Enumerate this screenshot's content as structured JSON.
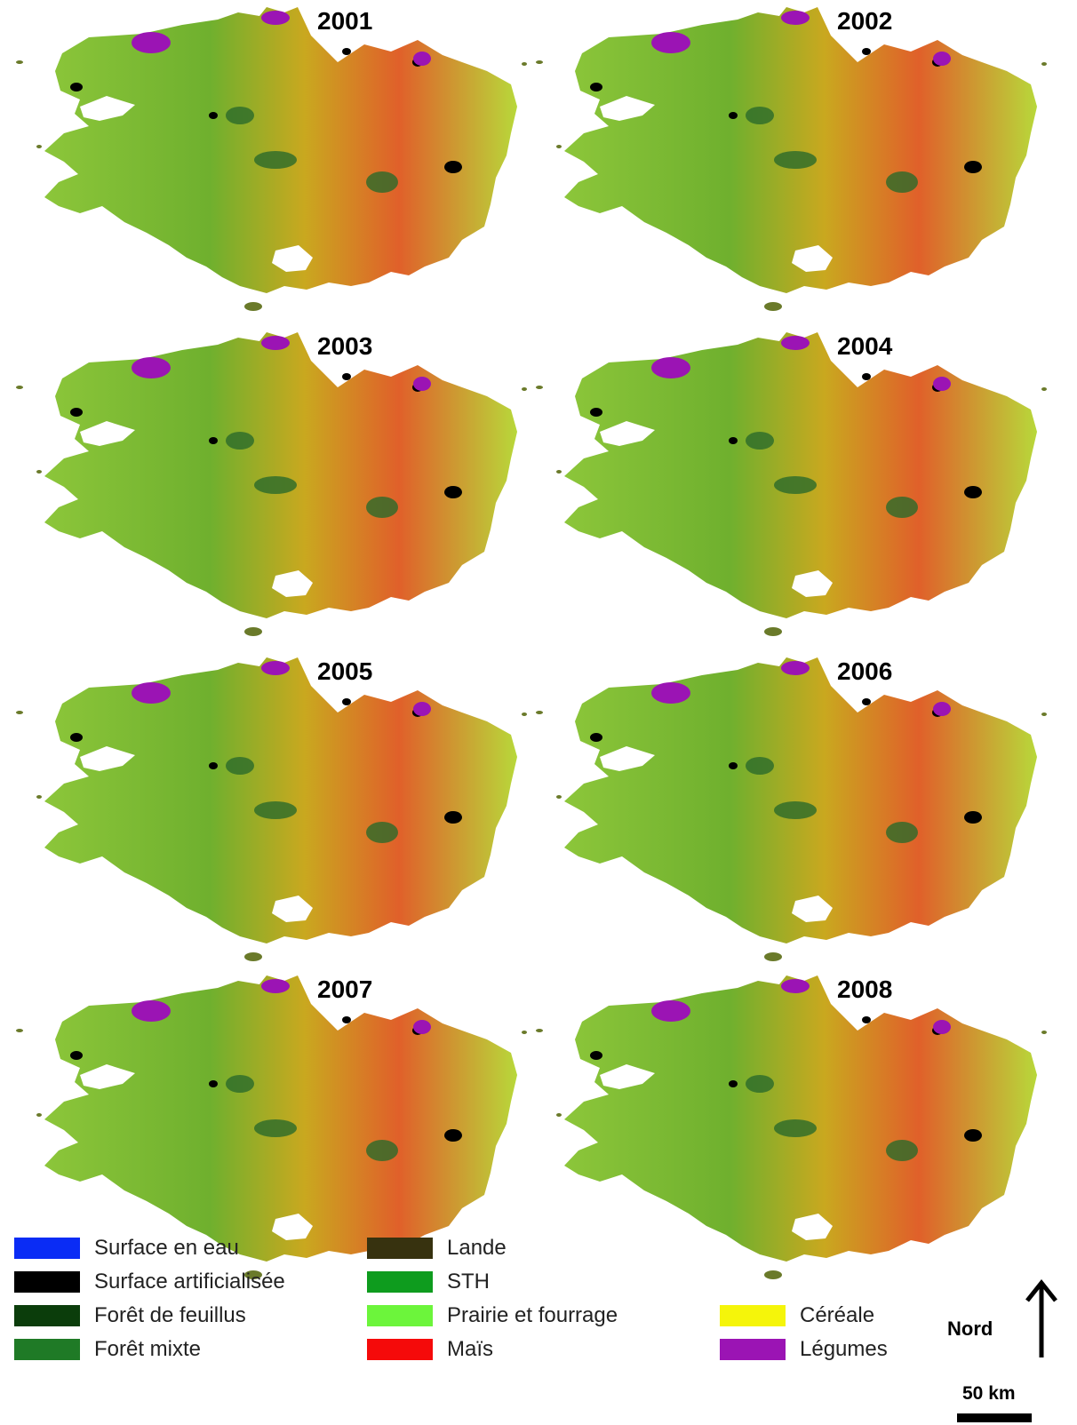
{
  "maps": [
    {
      "year": "2001"
    },
    {
      "year": "2002"
    },
    {
      "year": "2003"
    },
    {
      "year": "2004"
    },
    {
      "year": "2005"
    },
    {
      "year": "2006"
    },
    {
      "year": "2007"
    },
    {
      "year": "2008"
    }
  ],
  "legend": [
    {
      "label": "Surface en eau",
      "color": "#0a2cf5"
    },
    {
      "label": "Surface artificialisée",
      "color": "#000000"
    },
    {
      "label": "Forêt de feuillus",
      "color": "#0b3d0b"
    },
    {
      "label": "Forêt mixte",
      "color": "#1f7a26"
    },
    {
      "label": "Lande",
      "color": "#37320f"
    },
    {
      "label": "STH",
      "color": "#0e9c1e"
    },
    {
      "label": "Prairie et fourrage",
      "color": "#6cf53b"
    },
    {
      "label": "Maïs",
      "color": "#f50a0a"
    },
    {
      "label": "Céréale",
      "color": "#f5f50a"
    },
    {
      "label": "Légumes",
      "color": "#9b14b4"
    }
  ],
  "north": {
    "label": "Nord"
  },
  "scale": {
    "label": "50 km"
  }
}
